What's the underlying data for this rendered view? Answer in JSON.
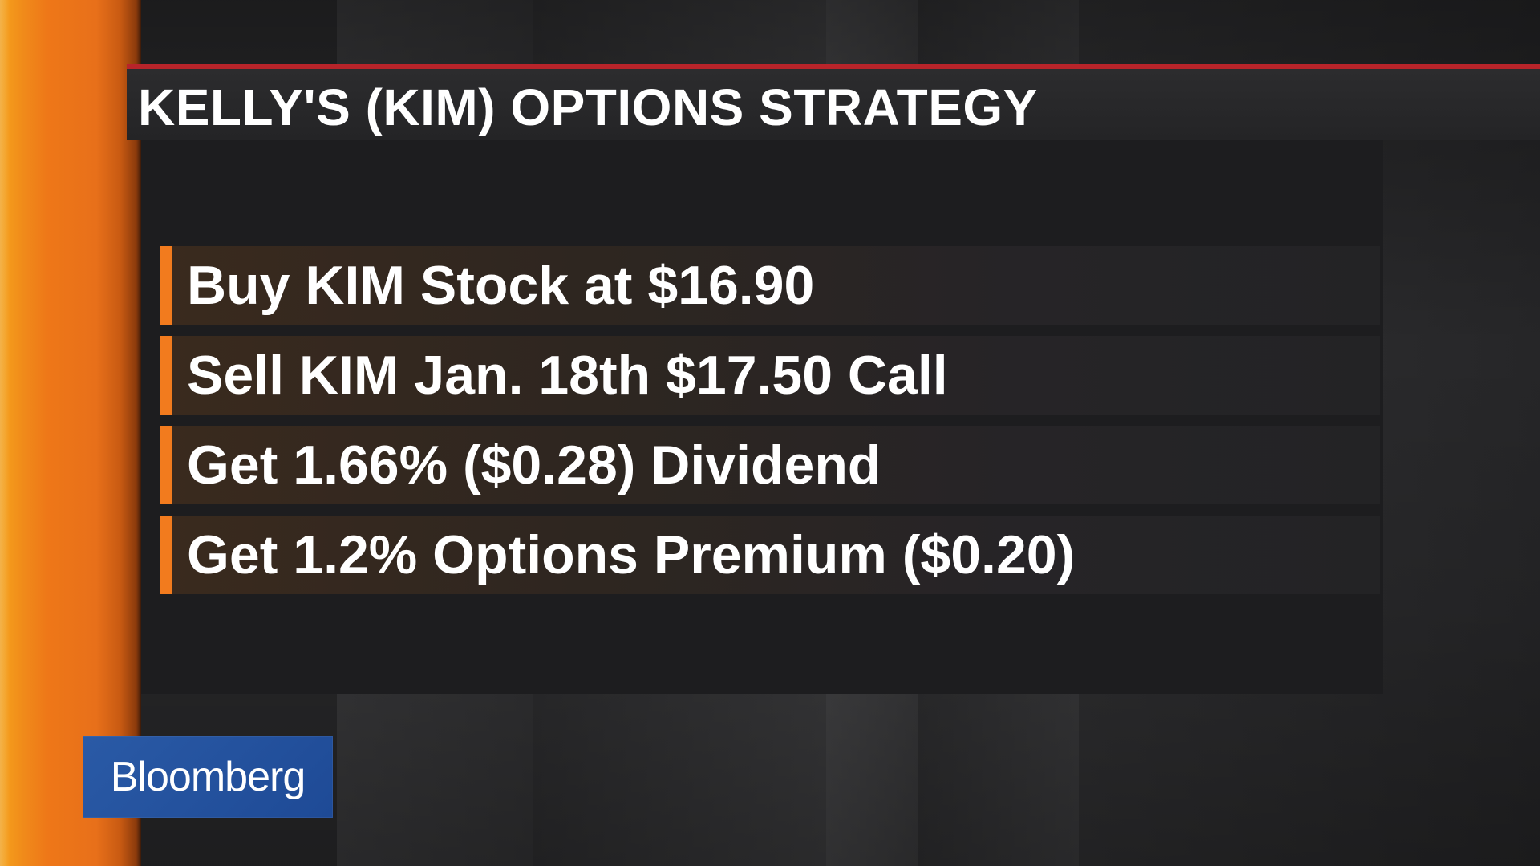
{
  "title": "KELLY'S (KIM) OPTIONS STRATEGY",
  "items": [
    {
      "label": "Buy KIM Stock at $16.90"
    },
    {
      "label": "Sell KIM Jan. 18th $17.50 Call"
    },
    {
      "label": "Get 1.66% ($0.28) Dividend"
    },
    {
      "label": "Get 1.2% Options Premium ($0.20)"
    }
  ],
  "logo": {
    "text": "Bloomberg"
  },
  "colors": {
    "accent": "#f27b1e",
    "title_rule": "#b8242a",
    "logo_bg": "#2456a2"
  }
}
